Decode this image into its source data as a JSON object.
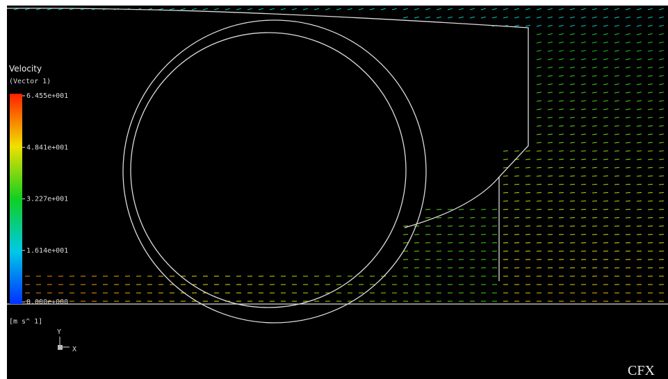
{
  "legend": {
    "title": "Velocity",
    "subtitle": "(Vector 1)",
    "ticks": [
      "6.455e+001",
      "4.841e+001",
      "3.227e+001",
      "1.614e+001",
      "0.000e+000"
    ],
    "units": "[m s^ 1]"
  },
  "axes": {
    "y": "Y",
    "x": "X"
  },
  "logo": "CFX"
}
